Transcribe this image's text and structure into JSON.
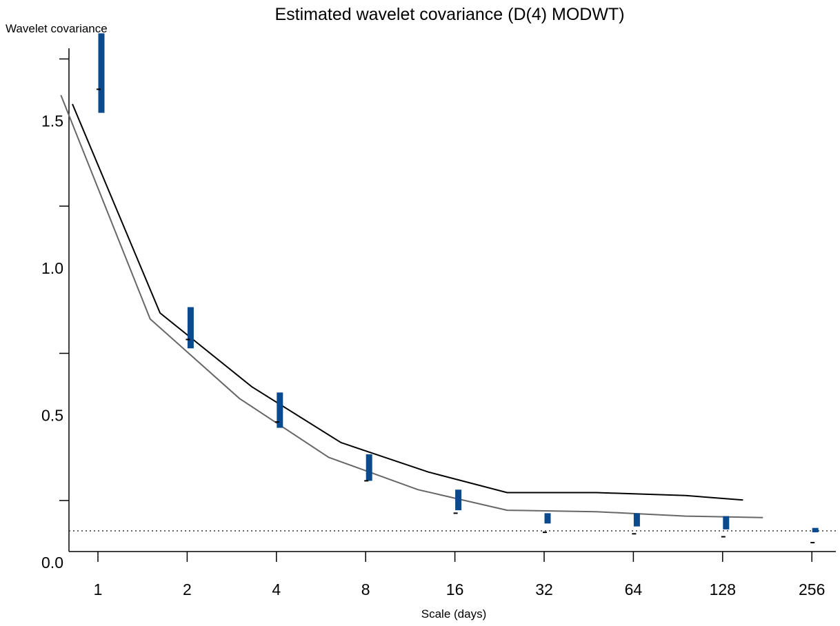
{
  "chart_data": {
    "type": "line",
    "title": "Estimated wavelet covariance (D(4) MODWT)",
    "ylabel": "Wavelet covariance",
    "xlabel": "Scale (days)",
    "x_scale": "log2",
    "x_ticks": [
      "1",
      "2",
      "4",
      "8",
      "16",
      "32",
      "64",
      "128",
      "256"
    ],
    "y_ticks": [
      "0.0",
      "0.5",
      "1.0",
      "1.5"
    ],
    "ylim": [
      -0.07,
      1.65
    ],
    "reference_line_y": 0.0,
    "grid": false,
    "legend": "none",
    "estimates": {
      "x": [
        1,
        2,
        4,
        8,
        16,
        32,
        64,
        128,
        256
      ],
      "low": [
        1.42,
        0.62,
        0.35,
        0.17,
        0.07,
        0.025,
        0.015,
        0.005,
        -0.005
      ],
      "high": [
        1.69,
        0.76,
        0.47,
        0.26,
        0.14,
        0.06,
        0.06,
        0.05,
        0.01
      ],
      "point": [
        1.5,
        0.65,
        0.37,
        0.17,
        0.06,
        -0.005,
        -0.01,
        -0.02,
        -0.04
      ]
    },
    "series": [
      {
        "x": [
          0.75,
          1.5,
          3,
          6,
          12,
          24,
          48,
          96,
          175
        ],
        "values": [
          1.48,
          0.72,
          0.45,
          0.25,
          0.14,
          0.07,
          0.065,
          0.05,
          0.045
        ],
        "color": "#666666"
      },
      {
        "x": [
          0.82,
          1.62,
          3.3,
          6.6,
          13,
          24,
          48,
          96,
          150
        ],
        "values": [
          1.45,
          0.74,
          0.49,
          0.3,
          0.2,
          0.13,
          0.13,
          0.12,
          0.105
        ],
        "color": "#000000"
      }
    ],
    "bar_color": "#0b4a8c"
  }
}
